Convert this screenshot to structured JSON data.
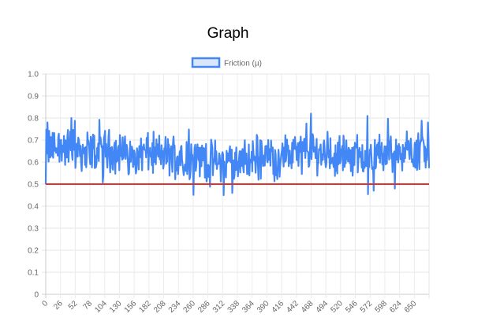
{
  "page": {
    "title": "Graph"
  },
  "chart_data": {
    "type": "line",
    "title": "",
    "xlabel": "",
    "ylabel": "",
    "legend": {
      "position": "top",
      "entries": [
        "Friction (µ)"
      ]
    },
    "grid": true,
    "x_tick_labels": [
      "0",
      "26",
      "52",
      "78",
      "104",
      "130",
      "156",
      "182",
      "208",
      "234",
      "260",
      "286",
      "312",
      "338",
      "364",
      "390",
      "416",
      "442",
      "468",
      "494",
      "520",
      "546",
      "572",
      "598",
      "624",
      "650"
    ],
    "x_range": [
      0,
      672
    ],
    "ylim": [
      0,
      1.0
    ],
    "y_ticks": [
      "0",
      "0.1",
      "0.2",
      "0.3",
      "0.4",
      "0.5",
      "0.6",
      "0.7",
      "0.8",
      "0.9",
      "1.0"
    ],
    "series": [
      {
        "name": "Friction (µ)",
        "color": "#4287f5",
        "fill": "#d9e6fb",
        "x_start": 0,
        "x_step": 1,
        "segment_means": [
          0.66,
          0.67,
          0.66,
          0.65,
          0.66,
          0.64,
          0.63,
          0.64,
          0.63,
          0.63,
          0.62,
          0.61,
          0.6,
          0.6,
          0.61,
          0.62,
          0.63,
          0.64,
          0.65,
          0.64,
          0.64,
          0.63,
          0.63,
          0.63,
          0.65,
          0.66,
          0.65
        ],
        "band_min": 0.45,
        "band_max": 0.82,
        "peaks": [
          [
            3,
            0.78
          ],
          [
            45,
            0.8
          ],
          [
            465,
            0.82
          ],
          [
            670,
            0.78
          ]
        ],
        "troughs": [
          [
            0,
            0.5
          ],
          [
            312,
            0.45
          ],
          [
            327,
            0.46
          ],
          [
            575,
            0.47
          ],
          [
            612,
            0.48
          ]
        ]
      },
      {
        "name": "",
        "color": "#e03131",
        "constant": 0.5
      }
    ]
  }
}
